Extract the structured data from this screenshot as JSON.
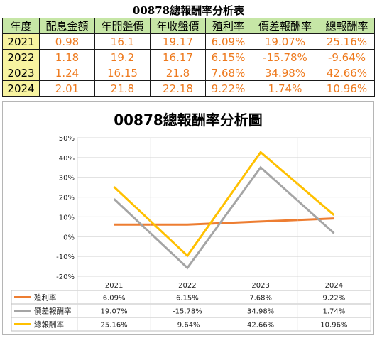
{
  "table": {
    "title": "00878總報酬率分析表",
    "headers": [
      "年度",
      "配息金額",
      "年開盤價",
      "年收盤價",
      "殖利率",
      "價差報酬率",
      "總報酬率"
    ],
    "rows": [
      [
        "2021",
        "0.98",
        "16.1",
        "19.17",
        "6.09%",
        "19.07%",
        "25.16%"
      ],
      [
        "2022",
        "1.18",
        "19.2",
        "16.17",
        "6.15%",
        "-15.78%",
        "-9.64%"
      ],
      [
        "2023",
        "1.24",
        "16.15",
        "21.8",
        "7.68%",
        "34.98%",
        "42.66%"
      ],
      [
        "2024",
        "2.01",
        "21.8",
        "22.18",
        "9.22%",
        "1.74%",
        "10.96%"
      ]
    ]
  },
  "chart_data": {
    "type": "line",
    "title": "00878總報酬率分析圖",
    "categories": [
      "2021",
      "2022",
      "2023",
      "2024"
    ],
    "ylim": [
      -20,
      50
    ],
    "yticks": [
      "-20%",
      "-10%",
      "0%",
      "10%",
      "20%",
      "30%",
      "40%",
      "50%"
    ],
    "grid": true,
    "legend": "data-table-below",
    "series": [
      {
        "name": "殖利率",
        "color": "#ed7d31",
        "values": [
          6.09,
          6.15,
          7.68,
          9.22
        ],
        "labels": [
          "6.09%",
          "6.15%",
          "7.68%",
          "9.22%"
        ]
      },
      {
        "name": "價差報酬率",
        "color": "#a5a5a5",
        "values": [
          19.07,
          -15.78,
          34.98,
          1.74
        ],
        "labels": [
          "19.07%",
          "-15.78%",
          "34.98%",
          "1.74%"
        ]
      },
      {
        "name": "總報酬率",
        "color": "#ffc000",
        "values": [
          25.16,
          -9.64,
          42.66,
          10.96
        ],
        "labels": [
          "25.16%",
          "-9.64%",
          "42.66%",
          "10.96%"
        ]
      }
    ]
  }
}
